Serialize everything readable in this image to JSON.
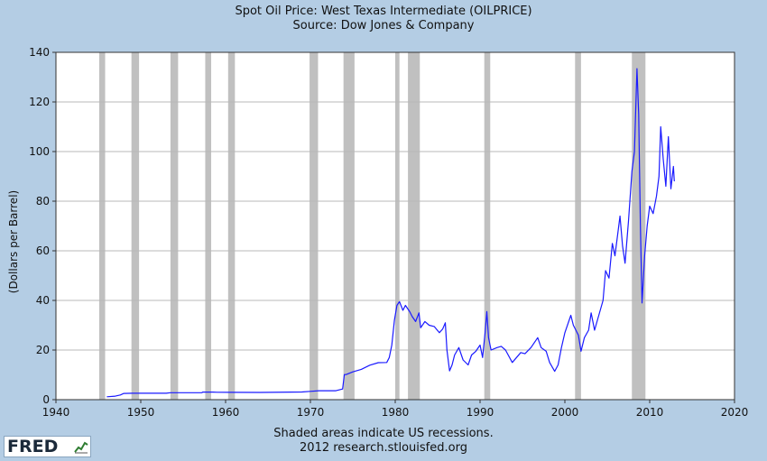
{
  "chart_data": {
    "type": "line",
    "title": "Spot Oil Price: West Texas Intermediate (OILPRICE)",
    "subtitle": "Source: Dow Jones & Company",
    "ylabel": "(Dollars per Barrel)",
    "xlabel": "",
    "xlim": [
      1940,
      2020
    ],
    "ylim": [
      0,
      140
    ],
    "xticks": [
      1940,
      1950,
      1960,
      1970,
      1980,
      1990,
      2000,
      2010,
      2020
    ],
    "yticks": [
      0,
      20,
      40,
      60,
      80,
      100,
      120,
      140
    ],
    "grid": true,
    "line_color": "#1a1aff",
    "recession_color": "#c0c0c0",
    "recessions": [
      [
        1945.1,
        1945.8
      ],
      [
        1948.9,
        1949.8
      ],
      [
        1953.5,
        1954.4
      ],
      [
        1957.6,
        1958.3
      ],
      [
        1960.3,
        1961.1
      ],
      [
        1969.9,
        1970.9
      ],
      [
        1973.9,
        1975.2
      ],
      [
        1980.0,
        1980.5
      ],
      [
        1981.5,
        1982.9
      ],
      [
        1990.5,
        1991.2
      ],
      [
        2001.2,
        2001.9
      ],
      [
        2007.9,
        2009.5
      ]
    ],
    "series": [
      {
        "values": [
          [
            1946.0,
            1.17
          ],
          [
            1947.0,
            1.4
          ],
          [
            1947.6,
            1.9
          ],
          [
            1948.0,
            2.5
          ],
          [
            1949.0,
            2.57
          ],
          [
            1953.0,
            2.57
          ],
          [
            1953.5,
            2.8
          ],
          [
            1955.0,
            2.8
          ],
          [
            1957.2,
            2.8
          ],
          [
            1957.3,
            3.07
          ],
          [
            1958.5,
            3.07
          ],
          [
            1959.0,
            2.97
          ],
          [
            1964.0,
            2.92
          ],
          [
            1969.0,
            3.1
          ],
          [
            1970.0,
            3.35
          ],
          [
            1971.0,
            3.6
          ],
          [
            1973.0,
            3.6
          ],
          [
            1973.8,
            4.3
          ],
          [
            1974.0,
            10.1
          ],
          [
            1974.2,
            10.1
          ],
          [
            1975.0,
            11.2
          ],
          [
            1976.0,
            12.2
          ],
          [
            1977.0,
            13.9
          ],
          [
            1978.0,
            14.9
          ],
          [
            1979.0,
            15.0
          ],
          [
            1979.3,
            17.0
          ],
          [
            1979.6,
            22.0
          ],
          [
            1979.9,
            32.0
          ],
          [
            1980.2,
            38.0
          ],
          [
            1980.5,
            39.5
          ],
          [
            1980.9,
            36.0
          ],
          [
            1981.2,
            38.0
          ],
          [
            1981.7,
            35.5
          ],
          [
            1982.0,
            33.5
          ],
          [
            1982.4,
            31.5
          ],
          [
            1982.8,
            35.0
          ],
          [
            1983.0,
            29.0
          ],
          [
            1983.5,
            31.5
          ],
          [
            1984.0,
            30.0
          ],
          [
            1984.6,
            29.5
          ],
          [
            1985.2,
            27.0
          ],
          [
            1985.6,
            28.5
          ],
          [
            1985.9,
            31.0
          ],
          [
            1986.1,
            20.0
          ],
          [
            1986.4,
            11.6
          ],
          [
            1986.7,
            14.0
          ],
          [
            1987.0,
            18.0
          ],
          [
            1987.5,
            21.0
          ],
          [
            1988.0,
            16.0
          ],
          [
            1988.6,
            14.0
          ],
          [
            1989.0,
            18.0
          ],
          [
            1989.5,
            19.5
          ],
          [
            1990.0,
            22.0
          ],
          [
            1990.3,
            17.0
          ],
          [
            1990.6,
            27.0
          ],
          [
            1990.8,
            35.5
          ],
          [
            1991.0,
            25.0
          ],
          [
            1991.3,
            20.0
          ],
          [
            1992.0,
            21.0
          ],
          [
            1992.5,
            21.5
          ],
          [
            1993.0,
            20.0
          ],
          [
            1993.8,
            15.0
          ],
          [
            1994.3,
            17.0
          ],
          [
            1994.8,
            19.0
          ],
          [
            1995.3,
            18.5
          ],
          [
            1996.0,
            21.0
          ],
          [
            1996.8,
            25.0
          ],
          [
            1997.2,
            21.0
          ],
          [
            1997.8,
            19.5
          ],
          [
            1998.2,
            15.0
          ],
          [
            1998.8,
            11.4
          ],
          [
            1999.2,
            14.0
          ],
          [
            1999.6,
            21.0
          ],
          [
            2000.0,
            27.0
          ],
          [
            2000.7,
            34.0
          ],
          [
            2001.0,
            30.0
          ],
          [
            2001.6,
            26.0
          ],
          [
            2001.9,
            19.5
          ],
          [
            2002.3,
            25.0
          ],
          [
            2002.8,
            28.0
          ],
          [
            2003.1,
            35.0
          ],
          [
            2003.5,
            28.0
          ],
          [
            2004.0,
            34.0
          ],
          [
            2004.5,
            40.0
          ],
          [
            2004.8,
            52.0
          ],
          [
            2005.2,
            49.0
          ],
          [
            2005.6,
            63.0
          ],
          [
            2005.9,
            58.0
          ],
          [
            2006.5,
            74.0
          ],
          [
            2006.8,
            62.0
          ],
          [
            2007.1,
            55.0
          ],
          [
            2007.5,
            72.0
          ],
          [
            2007.9,
            92.0
          ],
          [
            2008.2,
            100.0
          ],
          [
            2008.5,
            133.4
          ],
          [
            2008.7,
            115.0
          ],
          [
            2008.9,
            70.0
          ],
          [
            2009.1,
            39.0
          ],
          [
            2009.4,
            58.0
          ],
          [
            2009.7,
            70.0
          ],
          [
            2010.0,
            78.0
          ],
          [
            2010.4,
            75.0
          ],
          [
            2010.8,
            82.0
          ],
          [
            2011.1,
            90.0
          ],
          [
            2011.3,
            110.0
          ],
          [
            2011.6,
            97.0
          ],
          [
            2011.9,
            86.0
          ],
          [
            2012.2,
            106.0
          ],
          [
            2012.5,
            85.0
          ],
          [
            2012.8,
            94.0
          ],
          [
            2012.9,
            88.0
          ]
        ]
      }
    ]
  },
  "footer": {
    "line1": "Shaded areas indicate US recessions.",
    "line2": "2012 research.stlouisfed.org"
  },
  "logo": {
    "text": "FRED",
    "icon": "fred-chart-icon"
  }
}
